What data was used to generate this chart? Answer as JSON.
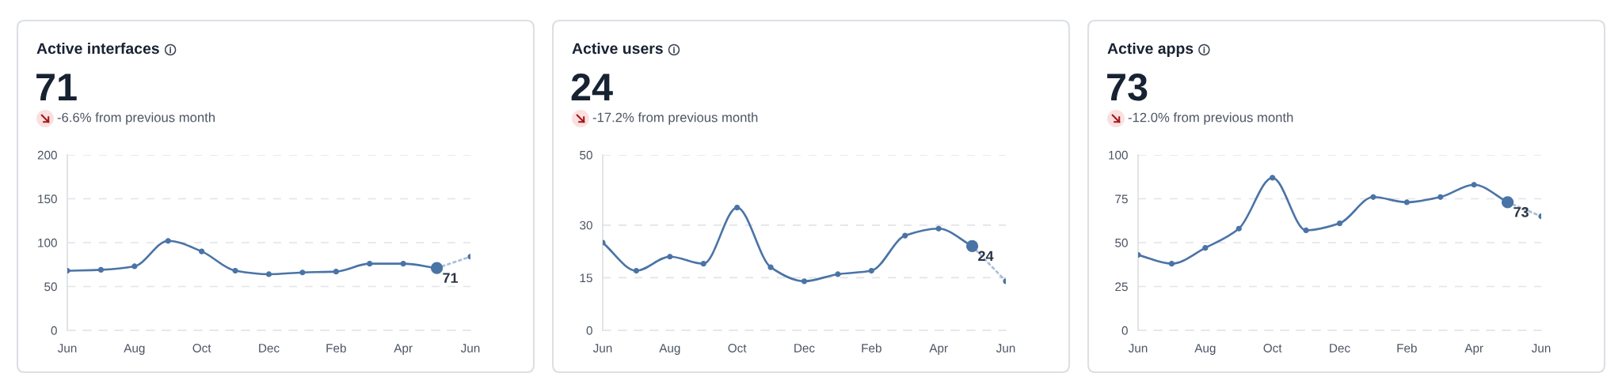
{
  "chart_data": [
    {
      "type": "line",
      "title": "Active interfaces",
      "subtitle": "71",
      "annotations": [
        "-6.6% from previous month"
      ],
      "categories": [
        "Jun",
        null,
        "Aug",
        null,
        "Oct",
        null,
        "Dec",
        null,
        "Feb",
        null,
        "Apr",
        null,
        "Jun"
      ],
      "ylim": [
        0,
        200
      ],
      "yticks": [
        0,
        50,
        100,
        150,
        200
      ],
      "grid": "y",
      "marker": "circle",
      "series": [
        {
          "type": "line",
          "color": "#4a74a6",
          "values": [
            68,
            69,
            73,
            102,
            90,
            68,
            64,
            66,
            67,
            76,
            76,
            71,
            null
          ]
        },
        {
          "type": "line",
          "color": "#4a74a6",
          "line_style": "dotted",
          "values": [
            null,
            null,
            null,
            null,
            null,
            null,
            null,
            null,
            null,
            null,
            null,
            71,
            84
          ]
        },
        {
          "type": "scatter",
          "color": "#4a74a6",
          "values": [
            null,
            null,
            null,
            null,
            null,
            null,
            null,
            null,
            null,
            null,
            null,
            71,
            null
          ],
          "value_labels": [
            null,
            null,
            null,
            null,
            null,
            null,
            null,
            null,
            null,
            null,
            null,
            "71",
            null
          ]
        }
      ]
    },
    {
      "type": "line",
      "title": "Active users",
      "subtitle": "24",
      "annotations": [
        "-17.2% from previous month"
      ],
      "categories": [
        "Jun",
        null,
        "Aug",
        null,
        "Oct",
        null,
        "Dec",
        null,
        "Feb",
        null,
        "Apr",
        null,
        "Jun"
      ],
      "ylim": [
        0,
        50
      ],
      "yticks": [
        0,
        15,
        30,
        50
      ],
      "grid": "y",
      "marker": "circle",
      "series": [
        {
          "type": "line",
          "color": "#4a74a6",
          "values": [
            25,
            17,
            21,
            19,
            35,
            18,
            14,
            16,
            17,
            27,
            29,
            24,
            null
          ]
        },
        {
          "type": "line",
          "color": "#4a74a6",
          "line_style": "dotted",
          "values": [
            null,
            null,
            null,
            null,
            null,
            null,
            null,
            null,
            null,
            null,
            null,
            24,
            14
          ]
        },
        {
          "type": "scatter",
          "color": "#4a74a6",
          "values": [
            null,
            null,
            null,
            null,
            null,
            null,
            null,
            null,
            null,
            null,
            null,
            24,
            null
          ],
          "value_labels": [
            null,
            null,
            null,
            null,
            null,
            null,
            null,
            null,
            null,
            null,
            null,
            "24",
            null
          ]
        }
      ]
    },
    {
      "type": "line",
      "title": "Active apps",
      "subtitle": "73",
      "annotations": [
        "-12.0% from previous month"
      ],
      "categories": [
        "Jun",
        null,
        "Aug",
        null,
        "Oct",
        null,
        "Dec",
        null,
        "Feb",
        null,
        "Apr",
        null,
        "Jun"
      ],
      "ylim": [
        0,
        100
      ],
      "yticks": [
        0,
        25,
        50,
        75,
        100
      ],
      "grid": "y",
      "marker": "circle",
      "series": [
        {
          "type": "line",
          "color": "#4a74a6",
          "values": [
            43,
            38,
            47,
            58,
            87,
            57,
            61,
            76,
            73,
            76,
            83,
            73,
            null
          ]
        },
        {
          "type": "line",
          "color": "#4a74a6",
          "line_style": "dotted",
          "values": [
            null,
            null,
            null,
            null,
            null,
            null,
            null,
            null,
            null,
            null,
            null,
            73,
            65
          ]
        },
        {
          "type": "scatter",
          "color": "#4a74a6",
          "values": [
            null,
            null,
            null,
            null,
            null,
            null,
            null,
            null,
            null,
            null,
            null,
            73,
            null
          ],
          "value_labels": [
            null,
            null,
            null,
            null,
            null,
            null,
            null,
            null,
            null,
            null,
            null,
            "73",
            null
          ]
        }
      ]
    }
  ]
}
